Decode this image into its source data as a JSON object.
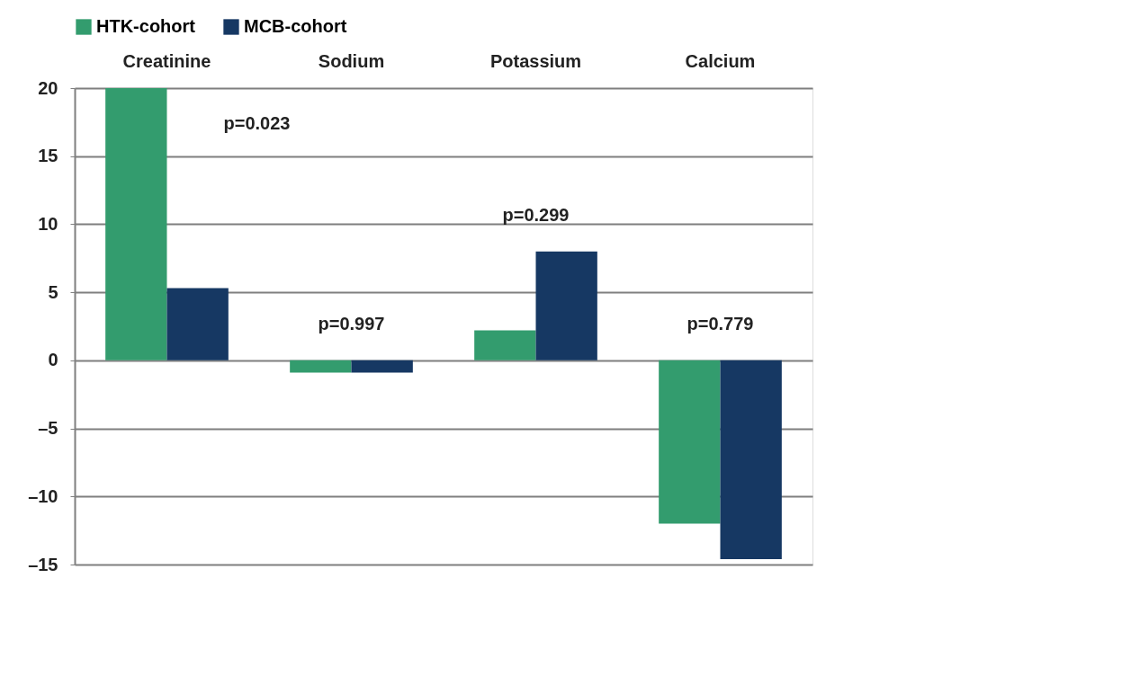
{
  "chart_data": {
    "type": "bar",
    "categories": [
      "Creatinine",
      "Sodium",
      "Potassium",
      "Calcium"
    ],
    "series": [
      {
        "name": "HTK-cohort",
        "color": "#339c6e",
        "values": [
          20,
          -0.9,
          2.2,
          -12.0
        ]
      },
      {
        "name": "MCB-cohort",
        "color": "#163863",
        "values": [
          5.3,
          -0.9,
          8.0,
          -14.6
        ]
      }
    ],
    "ylim": [
      -15,
      20
    ],
    "yticks": [
      {
        "value": -15,
        "label": "–15"
      },
      {
        "value": -10,
        "label": "–10"
      },
      {
        "value": -5,
        "label": "–5"
      },
      0,
      5,
      10,
      15,
      20
    ],
    "grid": "y",
    "legend": "top",
    "annotations": [
      "p=0.023",
      "p=0.997",
      "p=0.299",
      "p=0.779"
    ]
  }
}
